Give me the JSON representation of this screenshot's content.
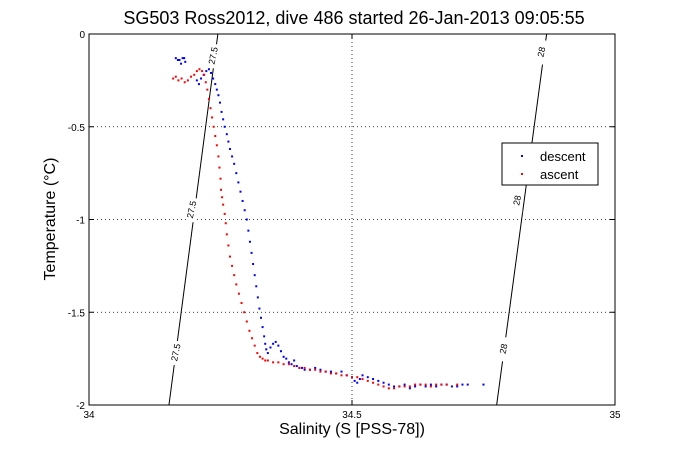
{
  "chart_data": {
    "type": "scatter",
    "title": "SG503 Ross2012, dive 486 started 26-Jan-2013 09:05:55",
    "xlabel": "Salinity (S [PSS-78])",
    "ylabel": "Temperature (°C)",
    "xlim": [
      34,
      35
    ],
    "ylim": [
      -2,
      0
    ],
    "x_ticks": [
      "34",
      "34.5",
      "35"
    ],
    "y_ticks": [
      "0",
      "-0.5",
      "-1",
      "-1.5",
      "-2"
    ],
    "grid": true,
    "legend_position": "right",
    "colors": {
      "descent": "#0000ff",
      "ascent": "#ff0000",
      "contour": "#000000"
    },
    "contours": [
      {
        "label": "27.5",
        "points": [
          [
            34.152,
            -2.0
          ],
          [
            34.245,
            0.0
          ]
        ]
      },
      {
        "label": "28",
        "points": [
          [
            34.775,
            -2.0
          ],
          [
            34.87,
            0.0
          ]
        ]
      }
    ],
    "contour_labels": [
      {
        "text": "27.5",
        "x": 34.236,
        "y": -0.12
      },
      {
        "text": "27.5",
        "x": 34.195,
        "y": -0.95
      },
      {
        "text": "27.5",
        "x": 34.165,
        "y": -1.72
      },
      {
        "text": "28",
        "x": 34.86,
        "y": -0.1
      },
      {
        "text": "28",
        "x": 34.814,
        "y": -0.9
      },
      {
        "text": "28",
        "x": 34.788,
        "y": -1.7
      }
    ],
    "series": [
      {
        "name": "descent",
        "points": [
          [
            34.165,
            -0.13
          ],
          [
            34.172,
            -0.14
          ],
          [
            34.178,
            -0.13
          ],
          [
            34.183,
            -0.15
          ],
          [
            34.175,
            -0.16
          ],
          [
            34.169,
            -0.14
          ],
          [
            34.181,
            -0.13
          ],
          [
            34.205,
            -0.25
          ],
          [
            34.209,
            -0.27
          ],
          [
            34.213,
            -0.24
          ],
          [
            34.218,
            -0.22
          ],
          [
            34.223,
            -0.2
          ],
          [
            34.228,
            -0.19
          ],
          [
            34.232,
            -0.21
          ],
          [
            34.236,
            -0.24
          ],
          [
            34.24,
            -0.27
          ],
          [
            34.243,
            -0.3
          ],
          [
            34.246,
            -0.33
          ],
          [
            34.249,
            -0.37
          ],
          [
            34.252,
            -0.42
          ],
          [
            34.255,
            -0.46
          ],
          [
            34.258,
            -0.5
          ],
          [
            34.262,
            -0.54
          ],
          [
            34.265,
            -0.58
          ],
          [
            34.268,
            -0.62
          ],
          [
            34.272,
            -0.66
          ],
          [
            34.276,
            -0.7
          ],
          [
            34.28,
            -0.75
          ],
          [
            34.284,
            -0.8
          ],
          [
            34.288,
            -0.85
          ],
          [
            34.292,
            -0.9
          ],
          [
            34.296,
            -0.95
          ],
          [
            34.3,
            -1.0
          ],
          [
            34.303,
            -1.06
          ],
          [
            34.306,
            -1.12
          ],
          [
            34.309,
            -1.18
          ],
          [
            34.312,
            -1.24
          ],
          [
            34.315,
            -1.3
          ],
          [
            34.318,
            -1.36
          ],
          [
            34.321,
            -1.42
          ],
          [
            34.324,
            -1.48
          ],
          [
            34.327,
            -1.53
          ],
          [
            34.33,
            -1.58
          ],
          [
            34.333,
            -1.63
          ],
          [
            34.335,
            -1.67
          ],
          [
            34.337,
            -1.7
          ],
          [
            34.34,
            -1.72
          ],
          [
            34.345,
            -1.69
          ],
          [
            34.35,
            -1.67
          ],
          [
            34.355,
            -1.66
          ],
          [
            34.36,
            -1.68
          ],
          [
            34.365,
            -1.71
          ],
          [
            34.37,
            -1.74
          ],
          [
            34.375,
            -1.75
          ],
          [
            34.38,
            -1.77
          ],
          [
            34.385,
            -1.78
          ],
          [
            34.39,
            -1.76
          ],
          [
            34.395,
            -1.79
          ],
          [
            34.4,
            -1.8
          ],
          [
            34.405,
            -1.8
          ],
          [
            34.41,
            -1.81
          ],
          [
            34.42,
            -1.81
          ],
          [
            34.43,
            -1.8
          ],
          [
            34.44,
            -1.81
          ],
          [
            34.45,
            -1.82
          ],
          [
            34.46,
            -1.82
          ],
          [
            34.47,
            -1.83
          ],
          [
            34.48,
            -1.82
          ],
          [
            34.49,
            -1.84
          ],
          [
            34.5,
            -1.85
          ],
          [
            34.505,
            -1.87
          ],
          [
            34.51,
            -1.88
          ],
          [
            34.515,
            -1.86
          ],
          [
            34.52,
            -1.84
          ],
          [
            34.53,
            -1.85
          ],
          [
            34.54,
            -1.86
          ],
          [
            34.55,
            -1.87
          ],
          [
            34.56,
            -1.88
          ],
          [
            34.57,
            -1.89
          ],
          [
            34.58,
            -1.9
          ],
          [
            34.59,
            -1.9
          ],
          [
            34.6,
            -1.89
          ],
          [
            34.61,
            -1.91
          ],
          [
            34.62,
            -1.9
          ],
          [
            34.63,
            -1.89
          ],
          [
            34.64,
            -1.9
          ],
          [
            34.65,
            -1.89
          ],
          [
            34.66,
            -1.9
          ],
          [
            34.67,
            -1.89
          ],
          [
            34.68,
            -1.89
          ],
          [
            34.69,
            -1.9
          ],
          [
            34.7,
            -1.9
          ],
          [
            34.71,
            -1.89
          ],
          [
            34.72,
            -1.89
          ],
          [
            34.75,
            -1.89
          ]
        ]
      },
      {
        "name": "ascent",
        "points": [
          [
            34.16,
            -0.24
          ],
          [
            34.165,
            -0.23
          ],
          [
            34.17,
            -0.25
          ],
          [
            34.176,
            -0.24
          ],
          [
            34.182,
            -0.26
          ],
          [
            34.188,
            -0.25
          ],
          [
            34.194,
            -0.23
          ],
          [
            34.2,
            -0.22
          ],
          [
            34.205,
            -0.2
          ],
          [
            34.21,
            -0.19
          ],
          [
            34.215,
            -0.2
          ],
          [
            34.219,
            -0.22
          ],
          [
            34.222,
            -0.26
          ],
          [
            34.225,
            -0.3
          ],
          [
            34.228,
            -0.35
          ],
          [
            34.231,
            -0.4
          ],
          [
            34.234,
            -0.45
          ],
          [
            34.237,
            -0.5
          ],
          [
            34.24,
            -0.55
          ],
          [
            34.243,
            -0.6
          ],
          [
            34.246,
            -0.66
          ],
          [
            34.248,
            -0.72
          ],
          [
            34.25,
            -0.78
          ],
          [
            34.251,
            -0.84
          ],
          [
            34.253,
            -0.88
          ],
          [
            34.255,
            -0.92
          ],
          [
            34.258,
            -0.97
          ],
          [
            34.26,
            -1.02
          ],
          [
            34.262,
            -1.08
          ],
          [
            34.265,
            -1.14
          ],
          [
            34.268,
            -1.2
          ],
          [
            34.272,
            -1.25
          ],
          [
            34.276,
            -1.3
          ],
          [
            34.28,
            -1.35
          ],
          [
            34.285,
            -1.4
          ],
          [
            34.29,
            -1.45
          ],
          [
            34.295,
            -1.5
          ],
          [
            34.3,
            -1.55
          ],
          [
            34.305,
            -1.6
          ],
          [
            34.31,
            -1.64
          ],
          [
            34.315,
            -1.68
          ],
          [
            34.32,
            -1.72
          ],
          [
            34.325,
            -1.74
          ],
          [
            34.33,
            -1.75
          ],
          [
            34.335,
            -1.76
          ],
          [
            34.34,
            -1.76
          ],
          [
            34.35,
            -1.77
          ],
          [
            34.36,
            -1.77
          ],
          [
            34.37,
            -1.78
          ],
          [
            34.38,
            -1.78
          ],
          [
            34.39,
            -1.79
          ],
          [
            34.4,
            -1.8
          ],
          [
            34.41,
            -1.8
          ],
          [
            34.42,
            -1.81
          ],
          [
            34.43,
            -1.81
          ],
          [
            34.44,
            -1.82
          ],
          [
            34.45,
            -1.82
          ],
          [
            34.46,
            -1.83
          ],
          [
            34.47,
            -1.83
          ],
          [
            34.48,
            -1.84
          ],
          [
            34.49,
            -1.84
          ],
          [
            34.5,
            -1.85
          ],
          [
            34.51,
            -1.85
          ],
          [
            34.52,
            -1.86
          ],
          [
            34.53,
            -1.87
          ],
          [
            34.54,
            -1.88
          ],
          [
            34.55,
            -1.89
          ],
          [
            34.56,
            -1.9
          ],
          [
            34.57,
            -1.91
          ],
          [
            34.58,
            -1.91
          ],
          [
            34.59,
            -1.9
          ],
          [
            34.6,
            -1.9
          ],
          [
            34.61,
            -1.9
          ],
          [
            34.62,
            -1.89
          ],
          [
            34.63,
            -1.89
          ],
          [
            34.64,
            -1.89
          ],
          [
            34.65,
            -1.9
          ],
          [
            34.66,
            -1.89
          ],
          [
            34.67,
            -1.89
          ],
          [
            34.68,
            -1.89
          ],
          [
            34.7,
            -1.89
          ]
        ]
      }
    ]
  }
}
